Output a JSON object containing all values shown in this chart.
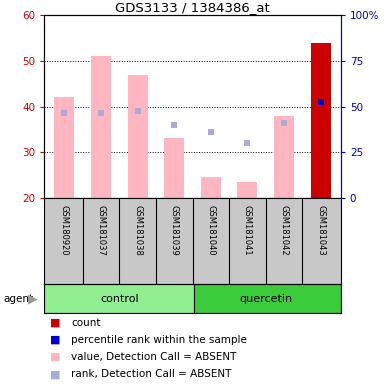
{
  "title": "GDS3133 / 1384386_at",
  "samples": [
    "GSM180920",
    "GSM181037",
    "GSM181038",
    "GSM181039",
    "GSM181040",
    "GSM181041",
    "GSM181042",
    "GSM181043"
  ],
  "groups": [
    "control",
    "control",
    "control",
    "control",
    "quercetin",
    "quercetin",
    "quercetin",
    "quercetin"
  ],
  "pink_bar_values": [
    42.0,
    51.0,
    47.0,
    33.0,
    24.5,
    23.5,
    38.0,
    54.0
  ],
  "blue_sq_values": [
    38.5,
    38.5,
    39.0,
    36.0,
    34.5,
    32.0,
    36.5,
    41.0
  ],
  "red_bar_index": 7,
  "ylim_left": [
    20,
    60
  ],
  "ylim_right": [
    0,
    100
  ],
  "yticks_left": [
    20,
    30,
    40,
    50,
    60
  ],
  "ytick_labels_right": [
    "0",
    "25",
    "50",
    "75",
    "100%"
  ],
  "bar_width": 0.55,
  "pink_color": "#FFB6C1",
  "red_color": "#CC0000",
  "blue_sq_color": "#AAAADD",
  "blue_dot_color": "#0000CC",
  "left_axis_color": "#CC0000",
  "right_axis_color": "#0000CC",
  "xlabel_area_color": "#C8C8C8",
  "control_color": "#90EE90",
  "quercetin_color": "#3BCC3B",
  "legend_items": [
    "count",
    "percentile rank within the sample",
    "value, Detection Call = ABSENT",
    "rank, Detection Call = ABSENT"
  ],
  "legend_colors": [
    "#CC0000",
    "#0000CC",
    "#FFB6C1",
    "#AAAADD"
  ]
}
